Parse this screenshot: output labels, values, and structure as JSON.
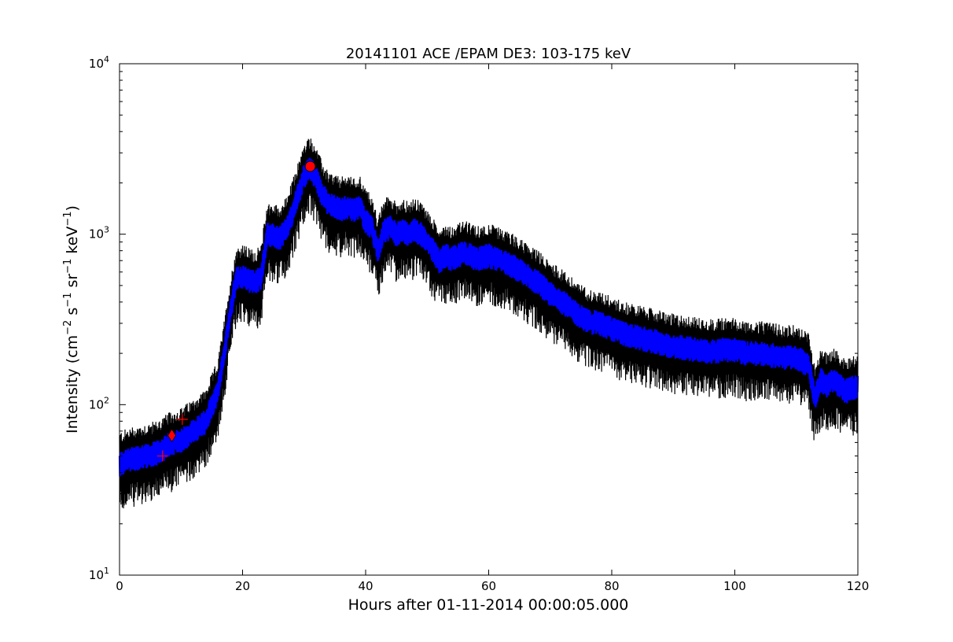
{
  "chart_data": {
    "type": "line",
    "title": "20141101 ACE /EPAM DE3: 103-175 keV",
    "xlabel": "Hours after 01-11-2014 00:00:05.000",
    "ylabel_parts": [
      "Intensity (cm",
      "−2",
      " s",
      "−1",
      " sr",
      "−1",
      " keV",
      "−1",
      ")"
    ],
    "xlim": [
      0,
      120
    ],
    "ylim": [
      10,
      10000
    ],
    "yscale": "log",
    "grid": false,
    "legend": "none",
    "x_ticks": [
      0,
      20,
      40,
      60,
      80,
      100,
      120
    ],
    "x_tick_labels": [
      "0",
      "20",
      "40",
      "60",
      "80",
      "100",
      "120"
    ],
    "y_tick_labels": [
      {
        "value": 10,
        "base": "10",
        "exp": "1"
      },
      {
        "value": 100,
        "base": "10",
        "exp": "2"
      },
      {
        "value": 1000,
        "base": "10",
        "exp": "3"
      },
      {
        "value": 10000,
        "base": "10",
        "exp": "4"
      }
    ],
    "series": [
      {
        "color": "#0000ff",
        "envelope_color": "#000000",
        "x": [
          0,
          2,
          4,
          6,
          8,
          10,
          12,
          14,
          16,
          17,
          18,
          19,
          20,
          21,
          22,
          23,
          24,
          25,
          26,
          27,
          28,
          29,
          30,
          31,
          32,
          33,
          34,
          35,
          36,
          37,
          38,
          39,
          40,
          41,
          42,
          43,
          44,
          45,
          46,
          47,
          48,
          49,
          50,
          51,
          52,
          53,
          54,
          55,
          56,
          57,
          58,
          60,
          62,
          64,
          66,
          68,
          70,
          72,
          74,
          76,
          78,
          80,
          82,
          84,
          86,
          88,
          90,
          92,
          94,
          96,
          98,
          100,
          102,
          104,
          106,
          108,
          110,
          112,
          113,
          114,
          115,
          116,
          117,
          118,
          119,
          120
        ],
        "y": [
          45,
          48,
          50,
          52,
          58,
          62,
          70,
          80,
          120,
          200,
          350,
          550,
          560,
          540,
          520,
          560,
          1000,
          980,
          950,
          1050,
          1300,
          1700,
          2200,
          2450,
          2100,
          1700,
          1500,
          1450,
          1400,
          1450,
          1380,
          1450,
          1200,
          1100,
          800,
          1050,
          1100,
          1000,
          1050,
          1000,
          1050,
          1000,
          900,
          800,
          700,
          750,
          720,
          750,
          780,
          750,
          720,
          750,
          700,
          650,
          580,
          520,
          450,
          400,
          350,
          310,
          300,
          280,
          260,
          250,
          240,
          230,
          220,
          215,
          210,
          205,
          210,
          210,
          200,
          200,
          195,
          190,
          190,
          170,
          110,
          140,
          130,
          140,
          130,
          120,
          125,
          130
        ],
        "noise_lower_factor": 0.72,
        "noise_upper_factor": 1.3
      }
    ],
    "markers": [
      {
        "type": "circle",
        "color": "#ff0000",
        "x": 31,
        "y": 2500
      },
      {
        "type": "diamond",
        "color": "#ff0000",
        "x": 8.5,
        "y": 66
      },
      {
        "type": "plus",
        "color": "#ff0000",
        "x": 7,
        "y": 50
      },
      {
        "type": "plus",
        "color": "#ff0000",
        "x": 10.2,
        "y": 82
      }
    ]
  }
}
